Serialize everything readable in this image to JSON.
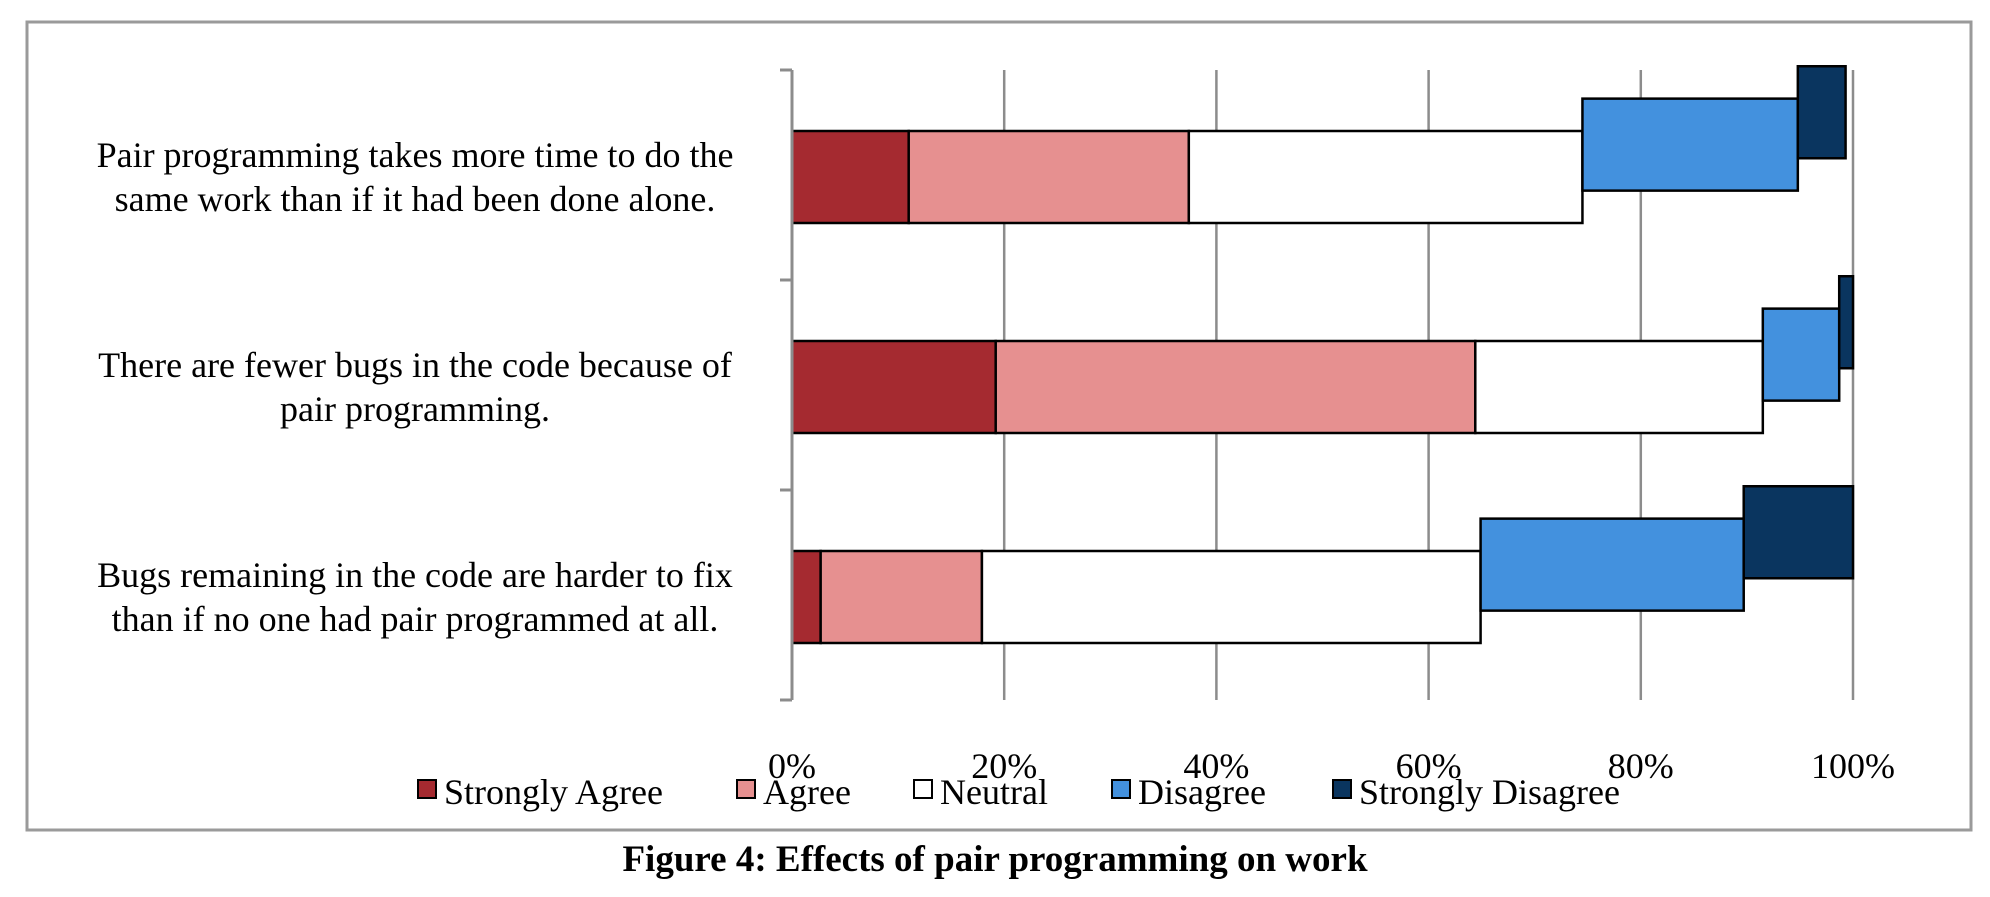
{
  "chart_data": {
    "type": "bar",
    "orientation": "horizontal",
    "stacked": true,
    "stacking": "offset",
    "categories": [
      [
        "Pair programming takes more time to do the",
        "same work than if it had been done alone."
      ],
      [
        "There are fewer bugs in the code because of",
        "pair programming."
      ],
      [
        "Bugs remaining in the code are harder to fix",
        "than if no one had pair programmed at all."
      ]
    ],
    "series": [
      {
        "name": "Strongly Agree",
        "color": "#a52a30",
        "values": [
          11,
          19.2,
          2.7
        ],
        "offsets": [
          0,
          0,
          0
        ]
      },
      {
        "name": "Agree",
        "color": "#e69090",
        "values": [
          26.4,
          45.2,
          15.2
        ],
        "offsets": [
          0,
          0,
          0
        ]
      },
      {
        "name": "Neutral",
        "color": "#ffffff",
        "values": [
          37.1,
          27.1,
          47
        ],
        "offsets": [
          0,
          0,
          0
        ]
      },
      {
        "name": "Disagree",
        "color": "#4391de",
        "values": [
          20.3,
          7.2,
          24.8
        ],
        "offsets": [
          -1.75,
          -1.75,
          -1.75
        ]
      },
      {
        "name": "Strongly Disagree",
        "color": "#0a355f",
        "values": [
          4.5,
          1.3,
          10.3
        ],
        "offsets": [
          -3.5,
          -3.5,
          -3.5
        ]
      }
    ],
    "x_ticks": [
      "0%",
      "20%",
      "40%",
      "60%",
      "80%",
      "100%"
    ],
    "xlim": [
      0,
      100
    ],
    "grid": true,
    "legend_position": "bottom"
  },
  "figure": {
    "caption": "Figure 4: Effects of pair programming on work"
  }
}
